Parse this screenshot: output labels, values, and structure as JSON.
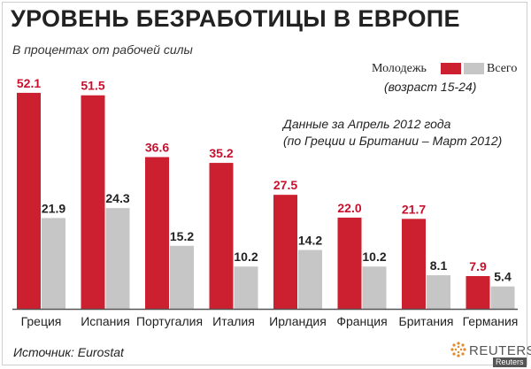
{
  "title": "УРОВЕНЬ БЕЗРАБОТИЦЫ В ЕВРОПЕ",
  "subtitle": "В процентах от рабочей силы",
  "legend": {
    "youth": "Молодежь",
    "total": "Всего",
    "note": "(возраст 15-24)"
  },
  "note": [
    "Данные за Апрель 2012 года",
    "(по Греции и Британии – Март 2012)"
  ],
  "source": "Источник: Eurostat",
  "brand": {
    "name": "REUTERS",
    "small": "Reuters"
  },
  "colors": {
    "youth": "#cc1f2f",
    "total": "#c6c6c6",
    "youth_label": "#c8102e",
    "axis": "#555555"
  },
  "chart_data": {
    "type": "bar",
    "categories": [
      "Греция",
      "Испания",
      "Португалия",
      "Италия",
      "Ирландия",
      "Франция",
      "Британия",
      "Германия"
    ],
    "series": [
      {
        "name": "Молодежь",
        "values": [
          52.1,
          51.5,
          36.6,
          35.2,
          27.5,
          22.0,
          21.7,
          7.9
        ]
      },
      {
        "name": "Всего",
        "values": [
          21.9,
          24.3,
          15.2,
          10.2,
          14.2,
          10.2,
          8.1,
          5.4
        ]
      }
    ],
    "value_labels": [
      [
        "52.1",
        "51.5",
        "36.6",
        "35.2",
        "27.5",
        "22.0",
        "21.7",
        "7.9"
      ],
      [
        "21.9",
        "24.3",
        "15.2",
        "10.2",
        "14.2",
        "10.2",
        "8.1",
        "5.4"
      ]
    ],
    "ylim": [
      0,
      54
    ],
    "grid": false,
    "legend_position": "top-right"
  }
}
